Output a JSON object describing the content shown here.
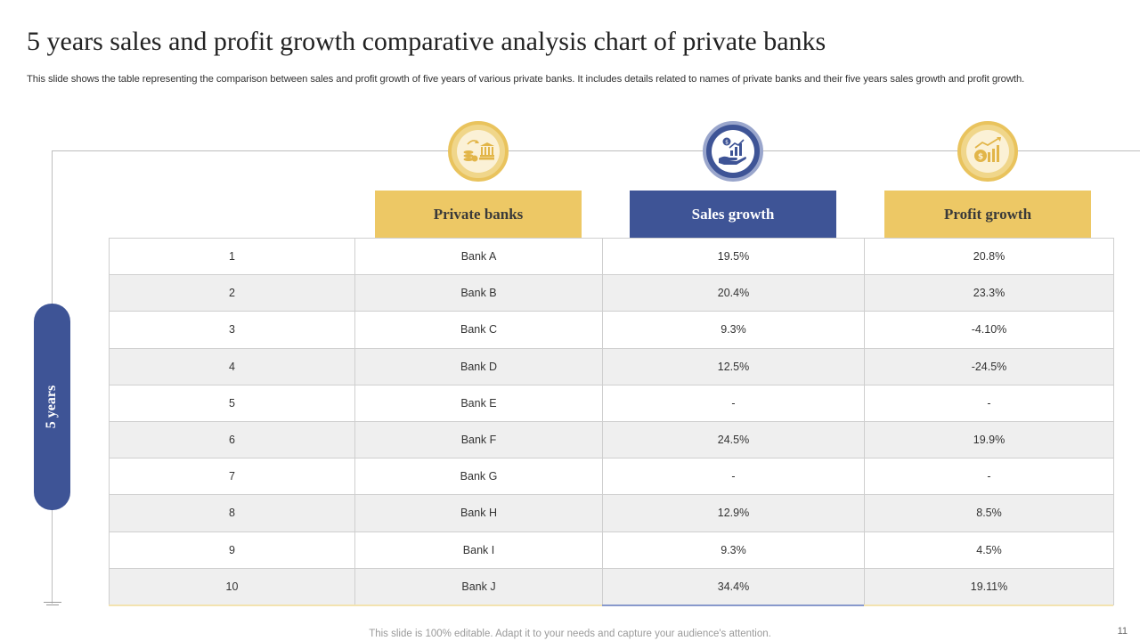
{
  "slide": {
    "title": "5 years sales and profit growth comparative analysis chart of private banks",
    "subtitle": "This slide shows the table representing the comparison between sales and profit growth of five years of various private banks. It includes details related to names of private banks and their five years sales growth and profit growth.",
    "side_label": "5 years",
    "footer": "This slide is 100% editable. Adapt it to your needs and capture your audience's attention.",
    "page_number": "11"
  },
  "columns": [
    {
      "label": "Private banks",
      "icon": "coins-bank-icon",
      "color": "#edc865"
    },
    {
      "label": "Sales growth",
      "icon": "hand-growth-chart-icon",
      "color": "#3e5496"
    },
    {
      "label": "Profit growth",
      "icon": "dollar-bar-chart-icon",
      "color": "#edc865"
    }
  ],
  "rows": [
    {
      "no": "1",
      "bank": "Bank A",
      "sales": "19.5%",
      "profit": "20.8%"
    },
    {
      "no": "2",
      "bank": "Bank B",
      "sales": "20.4%",
      "profit": "23.3%"
    },
    {
      "no": "3",
      "bank": "Bank C",
      "sales": "9.3%",
      "profit": "-4.10%"
    },
    {
      "no": "4",
      "bank": "Bank D",
      "sales": "12.5%",
      "profit": "-24.5%"
    },
    {
      "no": "5",
      "bank": "Bank E",
      "sales": "-",
      "profit": "-"
    },
    {
      "no": "6",
      "bank": "Bank F",
      "sales": "24.5%",
      "profit": "19.9%"
    },
    {
      "no": "7",
      "bank": "Bank G",
      "sales": "-",
      "profit": "-"
    },
    {
      "no": "8",
      "bank": "Bank H",
      "sales": "12.9%",
      "profit": "8.5%"
    },
    {
      "no": "9",
      "bank": "Bank I",
      "sales": "9.3%",
      "profit": "4.5%"
    },
    {
      "no": "10",
      "bank": "Bank J",
      "sales": "34.4%",
      "profit": "19.11%"
    }
  ]
}
